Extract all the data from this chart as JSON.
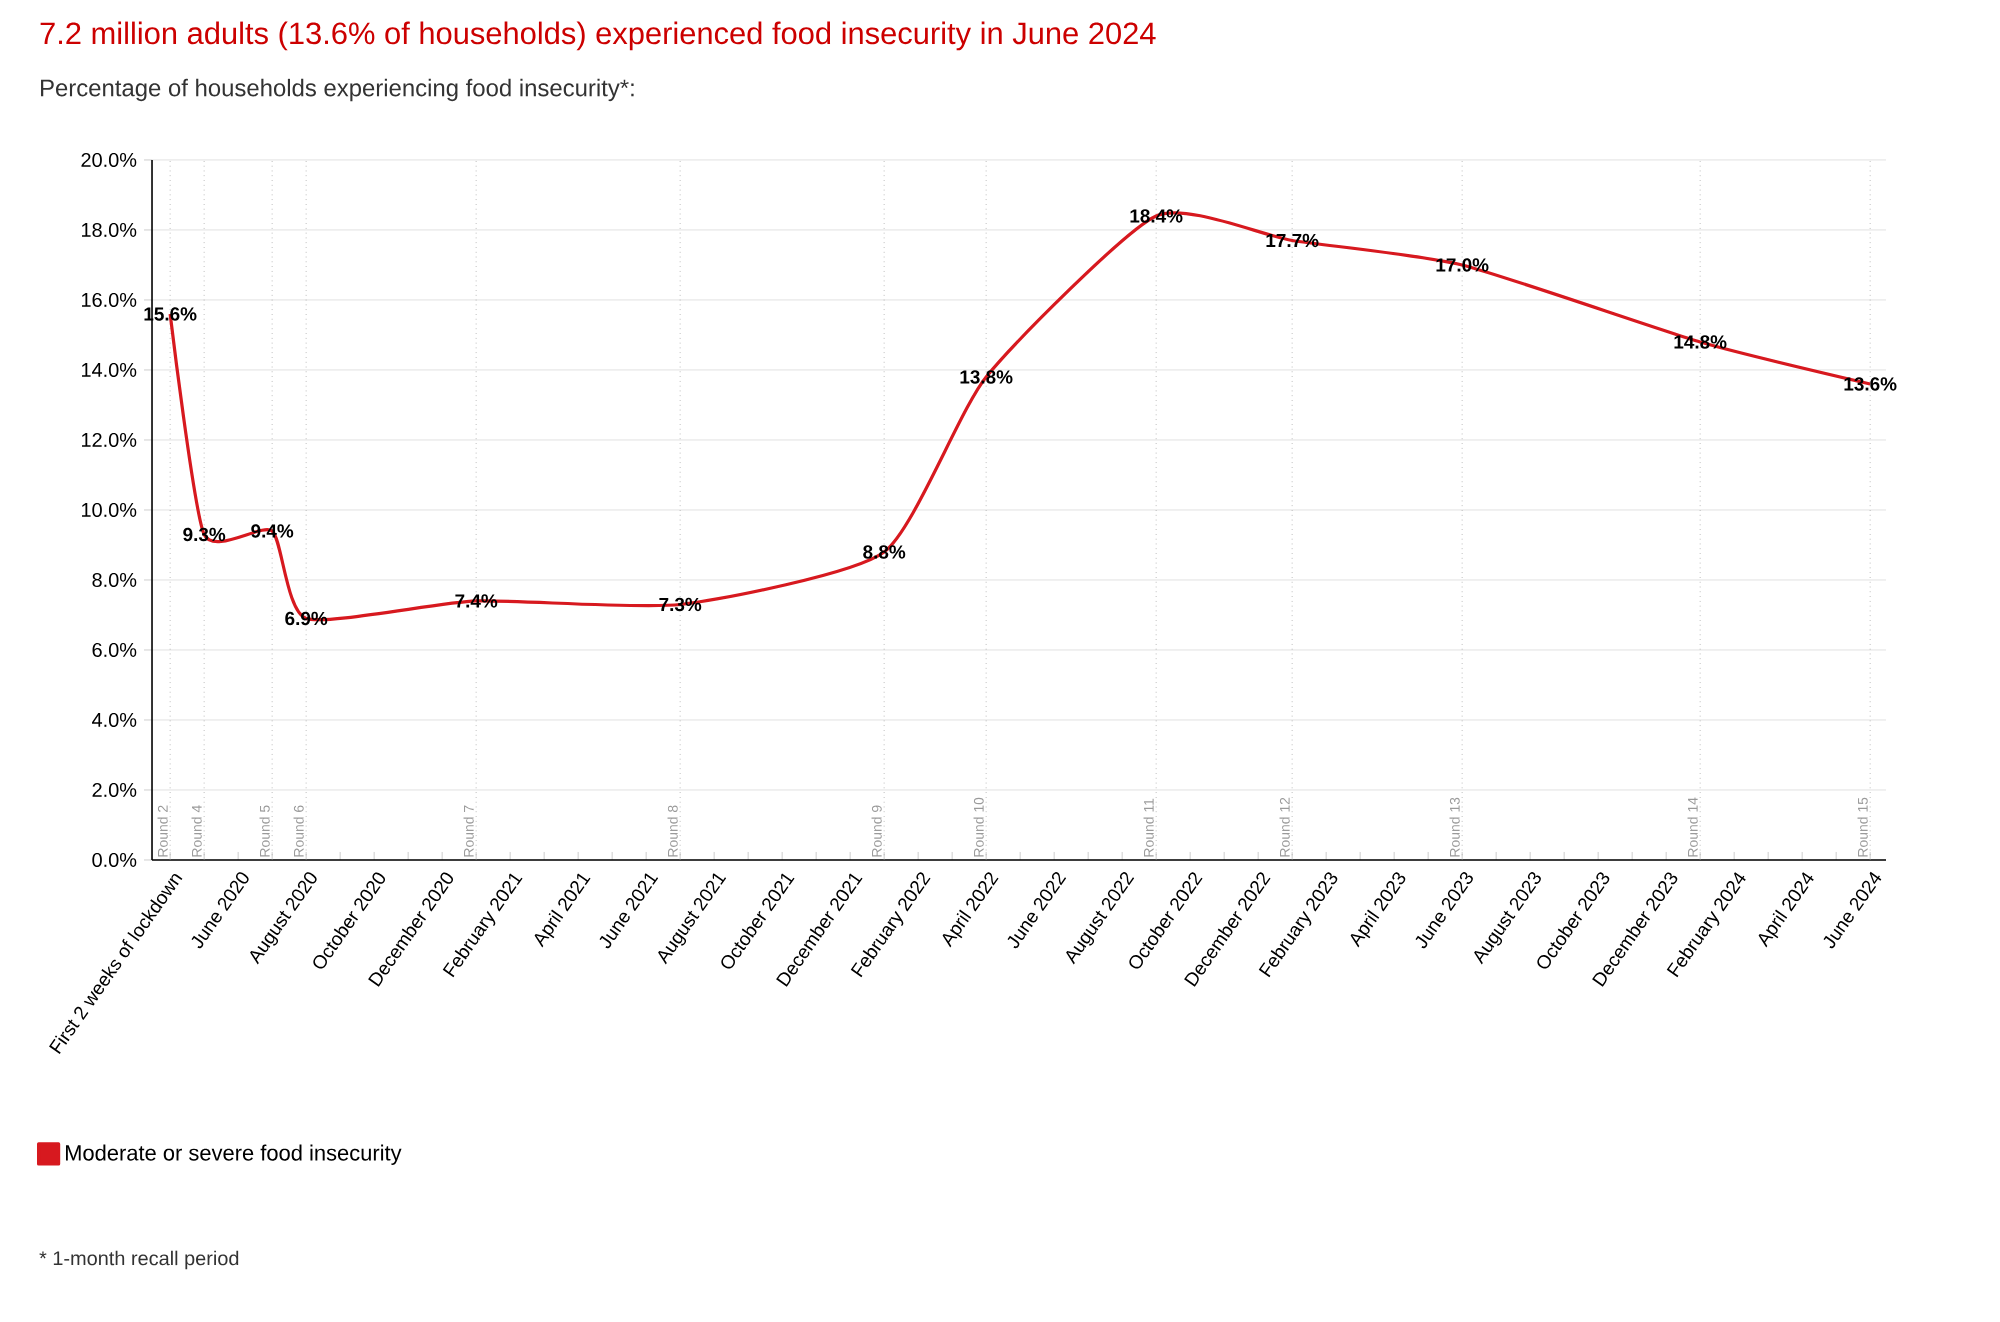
{
  "chart_data": {
    "type": "line",
    "title": "7.2 million adults (13.6% of households) experienced food insecurity in June 2024",
    "subtitle": "Percentage of households experiencing food insecurity*:",
    "x": [
      "2020-04",
      "2020-05",
      "2020-07",
      "2020-08",
      "2021-01",
      "2021-07",
      "2022-01",
      "2022-04",
      "2022-09",
      "2023-01",
      "2023-06",
      "2024-01",
      "2024-06"
    ],
    "series": [
      {
        "name": "Moderate or severe food insecurity",
        "color": "#d7191f",
        "values": [
          15.6,
          9.3,
          9.4,
          6.9,
          7.4,
          7.3,
          8.8,
          13.8,
          18.4,
          17.7,
          17.0,
          14.8,
          13.6
        ],
        "value_labels": [
          "15.6%",
          "9.3%",
          "9.4%",
          "6.9%",
          "7.4%",
          "7.3%",
          "8.8%",
          "13.8%",
          "18.4%",
          "17.7%",
          "17.0%",
          "14.8%",
          "13.6%"
        ]
      }
    ],
    "xlim": [
      "2020-03-15",
      "2024-06-15"
    ],
    "ylim": [
      0,
      20
    ],
    "yticks": [
      {
        "value": 0,
        "label": "0.0%"
      },
      {
        "value": 2,
        "label": "2.0%"
      },
      {
        "value": 4,
        "label": "4.0%"
      },
      {
        "value": 6,
        "label": "6.0%"
      },
      {
        "value": 8,
        "label": "8.0%"
      },
      {
        "value": 10,
        "label": "10.0%"
      },
      {
        "value": 12,
        "label": "12.0%"
      },
      {
        "value": 14,
        "label": "14.0%"
      },
      {
        "value": 16,
        "label": "16.0%"
      },
      {
        "value": 18,
        "label": "18.0%"
      },
      {
        "value": 20,
        "label": "20.0%"
      }
    ],
    "xticks": [
      {
        "value": "2020-04",
        "label": "First 2 weeks of lockdown"
      },
      {
        "value": "2020-05",
        "label": null
      },
      {
        "value": "2020-06",
        "label": "June 2020"
      },
      {
        "value": "2020-07",
        "label": null
      },
      {
        "value": "2020-08",
        "label": "August 2020"
      },
      {
        "value": "2020-09",
        "label": null
      },
      {
        "value": "2020-10",
        "label": "October 2020"
      },
      {
        "value": "2020-11",
        "label": null
      },
      {
        "value": "2020-12",
        "label": "December 2020"
      },
      {
        "value": "2021-01",
        "label": null
      },
      {
        "value": "2021-02",
        "label": "February 2021"
      },
      {
        "value": "2021-03",
        "label": null
      },
      {
        "value": "2021-04",
        "label": "April 2021"
      },
      {
        "value": "2021-05",
        "label": null
      },
      {
        "value": "2021-06",
        "label": "June 2021"
      },
      {
        "value": "2021-07",
        "label": null
      },
      {
        "value": "2021-08",
        "label": "August 2021"
      },
      {
        "value": "2021-09",
        "label": null
      },
      {
        "value": "2021-10",
        "label": "October 2021"
      },
      {
        "value": "2021-11",
        "label": null
      },
      {
        "value": "2021-12",
        "label": "December 2021"
      },
      {
        "value": "2022-01",
        "label": null
      },
      {
        "value": "2022-02",
        "label": "February 2022"
      },
      {
        "value": "2022-03",
        "label": null
      },
      {
        "value": "2022-04",
        "label": "April 2022"
      },
      {
        "value": "2022-05",
        "label": null
      },
      {
        "value": "2022-06",
        "label": "June 2022"
      },
      {
        "value": "2022-07",
        "label": null
      },
      {
        "value": "2022-08",
        "label": "August 2022"
      },
      {
        "value": "2022-09",
        "label": null
      },
      {
        "value": "2022-10",
        "label": "October 2022"
      },
      {
        "value": "2022-11",
        "label": null
      },
      {
        "value": "2022-12",
        "label": "December 2022"
      },
      {
        "value": "2023-01",
        "label": null
      },
      {
        "value": "2023-02",
        "label": "February 2023"
      },
      {
        "value": "2023-03",
        "label": null
      },
      {
        "value": "2023-04",
        "label": "April 2023"
      },
      {
        "value": "2023-05",
        "label": null
      },
      {
        "value": "2023-06",
        "label": "June 2023"
      },
      {
        "value": "2023-07",
        "label": null
      },
      {
        "value": "2023-08",
        "label": "August 2023"
      },
      {
        "value": "2023-09",
        "label": null
      },
      {
        "value": "2023-10",
        "label": "October 2023"
      },
      {
        "value": "2023-11",
        "label": null
      },
      {
        "value": "2023-12",
        "label": "December 2023"
      },
      {
        "value": "2024-01",
        "label": null
      },
      {
        "value": "2024-02",
        "label": "February 2024"
      },
      {
        "value": "2024-03",
        "label": null
      },
      {
        "value": "2024-04",
        "label": "April 2024"
      },
      {
        "value": "2024-05",
        "label": null
      },
      {
        "value": "2024-06",
        "label": "June 2024"
      }
    ],
    "ref_lines": [
      {
        "axis": "x",
        "value": "2020-04",
        "label": "Round 2",
        "color": "#9a9a9a",
        "line_style": "dotted"
      },
      {
        "axis": "x",
        "value": "2020-05",
        "label": "Round 4",
        "color": "#9a9a9a",
        "line_style": "dotted"
      },
      {
        "axis": "x",
        "value": "2020-07",
        "label": "Round 5",
        "color": "#9a9a9a",
        "line_style": "dotted"
      },
      {
        "axis": "x",
        "value": "2020-08",
        "label": "Round 6",
        "color": "#9a9a9a",
        "line_style": "dotted"
      },
      {
        "axis": "x",
        "value": "2021-01",
        "label": "Round 7",
        "color": "#9a9a9a",
        "line_style": "dotted"
      },
      {
        "axis": "x",
        "value": "2021-07",
        "label": "Round 8",
        "color": "#9a9a9a",
        "line_style": "dotted"
      },
      {
        "axis": "x",
        "value": "2022-01",
        "label": "Round 9",
        "color": "#9a9a9a",
        "line_style": "dotted"
      },
      {
        "axis": "x",
        "value": "2022-04",
        "label": "Round 10",
        "color": "#9a9a9a",
        "line_style": "dotted"
      },
      {
        "axis": "x",
        "value": "2022-09",
        "label": "Round 11",
        "color": "#9a9a9a",
        "line_style": "dotted"
      },
      {
        "axis": "x",
        "value": "2023-01",
        "label": "Round 12",
        "color": "#9a9a9a",
        "line_style": "dotted"
      },
      {
        "axis": "x",
        "value": "2023-06",
        "label": "Round 13",
        "color": "#9a9a9a",
        "line_style": "dotted"
      },
      {
        "axis": "x",
        "value": "2024-01",
        "label": "Round 14",
        "color": "#9a9a9a",
        "line_style": "dotted"
      },
      {
        "axis": "x",
        "value": "2024-06",
        "label": "Round 15",
        "color": "#9a9a9a",
        "line_style": "dotted"
      }
    ],
    "grid": "y",
    "legend": "bottom left",
    "annotations": [
      "* 1-month recall period"
    ]
  }
}
